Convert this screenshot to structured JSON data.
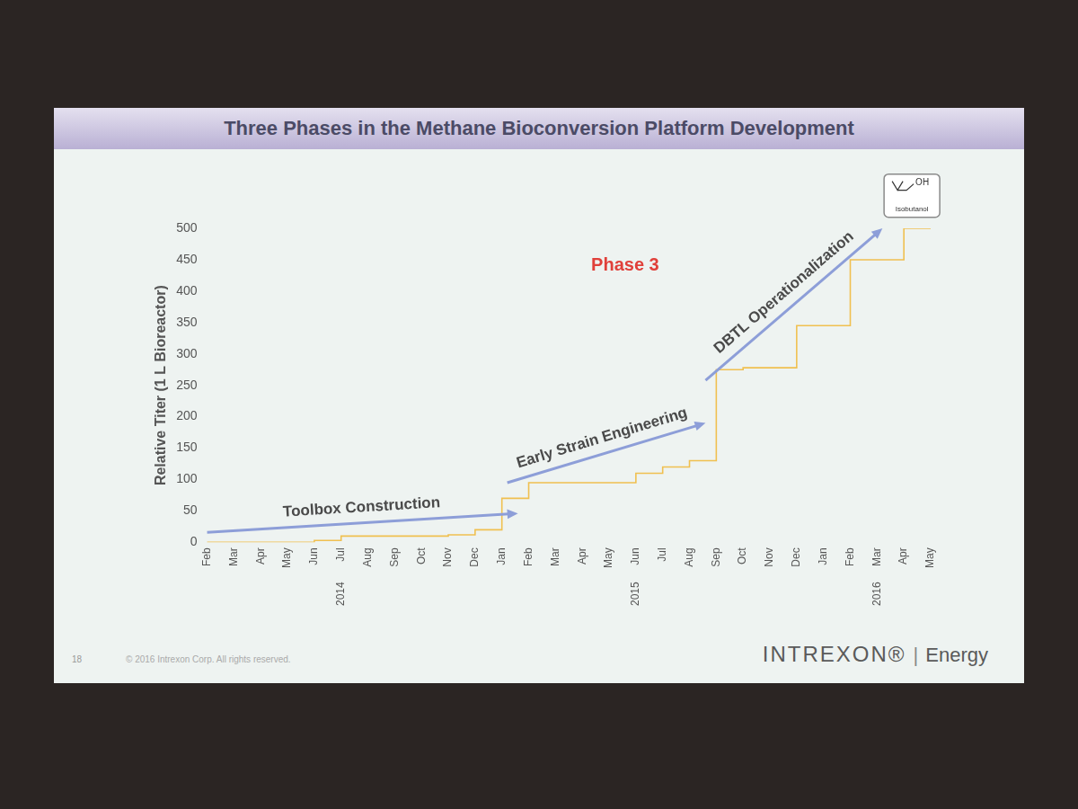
{
  "chart_data": {
    "type": "line",
    "title": "Three Phases in the Methane Bioconversion Platform Development",
    "y_label": "Relative Titer (1 L Bioreactor)",
    "categories": [
      "Feb",
      "Mar",
      "Apr",
      "May",
      "Jun",
      "Jul",
      "Aug",
      "Sep",
      "Oct",
      "Nov",
      "Dec",
      "Jan",
      "Feb",
      "Mar",
      "Apr",
      "May",
      "Jun",
      "Jul",
      "Aug",
      "Sep",
      "Oct",
      "Nov",
      "Dec",
      "Jan",
      "Feb",
      "Mar",
      "Apr",
      "May"
    ],
    "year_labels": [
      null,
      null,
      null,
      null,
      null,
      "2014",
      null,
      null,
      null,
      null,
      null,
      null,
      null,
      null,
      null,
      null,
      "2015",
      null,
      null,
      null,
      null,
      null,
      null,
      null,
      null,
      "2016",
      null,
      null
    ],
    "values": [
      0,
      0,
      0,
      0,
      0,
      3,
      10,
      10,
      10,
      10,
      12,
      20,
      70,
      95,
      95,
      95,
      95,
      110,
      120,
      130,
      275,
      278,
      278,
      345,
      345,
      450,
      450,
      500
    ],
    "color": "#f0c050",
    "line_style": "steps",
    "marker": "none",
    "ylim": [
      0,
      500
    ],
    "yticks": [
      0,
      50,
      100,
      150,
      200,
      250,
      300,
      350,
      400,
      450,
      500
    ],
    "grid": false,
    "annotations": [
      {
        "text": "Toolbox Construction"
      },
      {
        "text": "Early Strain Engineering"
      },
      {
        "text": "DBTL Operationalization"
      },
      {
        "text": "Phase 3"
      }
    ],
    "icon": {
      "text": "OH",
      "label": "Isobutanol"
    }
  },
  "footer": {
    "page": "18",
    "copyright": "© 2016 Intrexon Corp. All rights reserved.",
    "brand": "INTREXON®",
    "separator": "|",
    "division": "Energy"
  }
}
